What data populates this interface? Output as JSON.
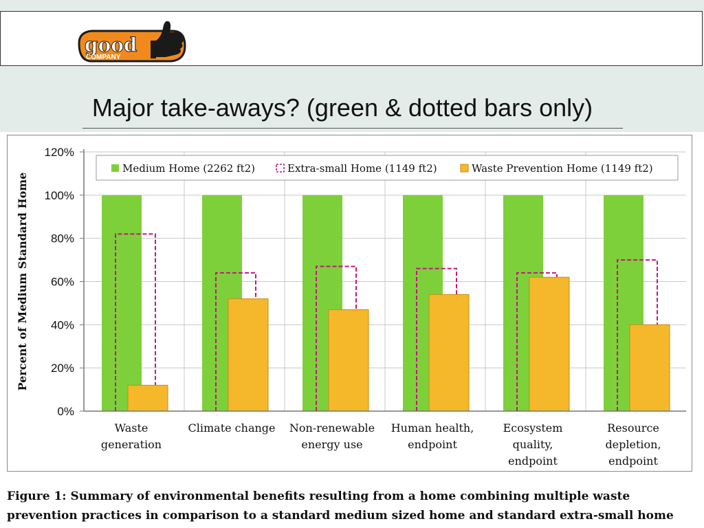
{
  "header": {
    "logo": {
      "text_top": "good",
      "text_bottom": "COMPANY",
      "icon": "thumbs-up-icon"
    }
  },
  "slide": {
    "title": "Major take-aways? (green & dotted bars only)"
  },
  "chart_data": {
    "type": "bar",
    "title": "",
    "xlabel": "",
    "ylabel": "Percent of Medium Standard Home",
    "ylim": [
      0,
      120
    ],
    "yticks": [
      0,
      20,
      40,
      60,
      80,
      100,
      120
    ],
    "ytick_labels": [
      "0%",
      "20%",
      "40%",
      "60%",
      "80%",
      "100%",
      "120%"
    ],
    "grid": true,
    "legend_position": "top",
    "categories": [
      [
        "Waste",
        "generation"
      ],
      [
        "Climate change"
      ],
      [
        "Non-renewable",
        "energy use"
      ],
      [
        "Human health,",
        "endpoint"
      ],
      [
        "Ecosystem",
        "quality,",
        "endpoint"
      ],
      [
        "Resource",
        "depletion,",
        "endpoint"
      ]
    ],
    "series": [
      {
        "name": "Medium Home (2262 ft2)",
        "style": "solid",
        "color": "#7ed03a",
        "values": [
          100,
          100,
          100,
          100,
          100,
          100
        ]
      },
      {
        "name": "Extra-small Home (1149 ft2)",
        "style": "dashed-outline",
        "color": "#c0177e",
        "values": [
          82,
          64,
          67,
          66,
          64,
          70
        ]
      },
      {
        "name": "Waste Prevention Home (1149 ft2)",
        "style": "solid",
        "color": "#f4b82a",
        "values": [
          12,
          52,
          47,
          54,
          62,
          40
        ]
      }
    ]
  },
  "caption": {
    "line1": "Figure 1: Summary of environmental benefits resulting from a home combining multiple waste",
    "line2": "prevention practices in comparison to a standard medium sized home and standard extra-small home"
  }
}
